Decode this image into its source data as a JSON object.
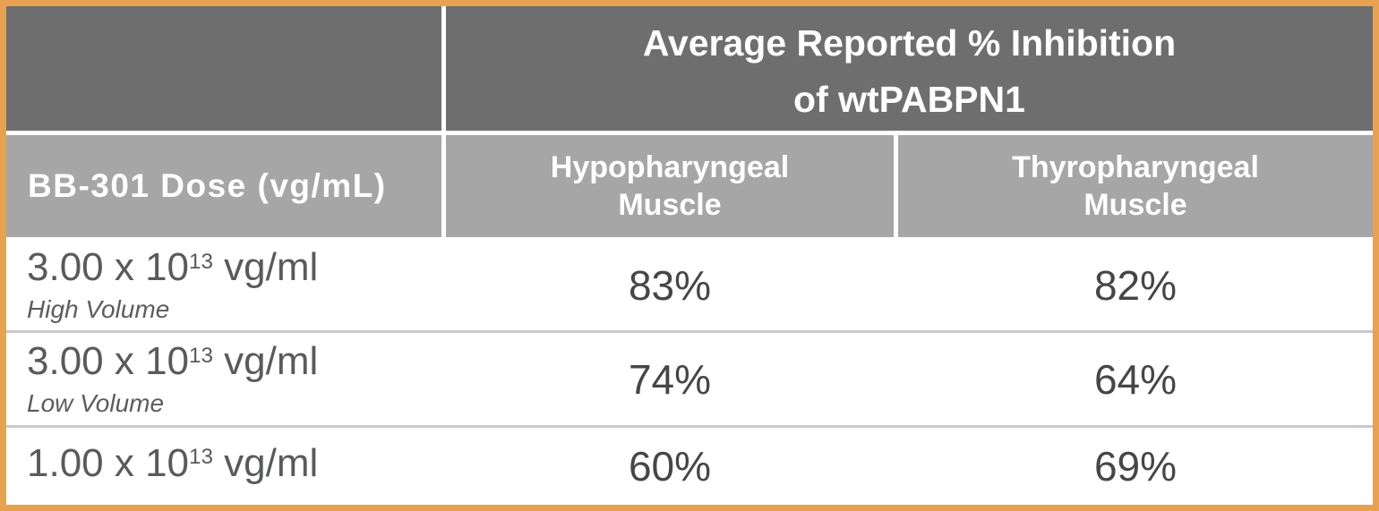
{
  "table": {
    "title_line1": "Average Reported % Inhibition",
    "title_line2": "of wtPABPN1",
    "dose_column_header": "BB-301 Dose (vg/mL)",
    "muscle_headers": [
      "Hypopharyngeal\nMuscle",
      "Thyropharyngeal\nMuscle"
    ],
    "rows": [
      {
        "dose_base": "3.00 x 10",
        "dose_exp": "13",
        "dose_unit": " vg/ml",
        "note": "High Volume",
        "hypo": "83%",
        "thyro": "82%"
      },
      {
        "dose_base": "3.00 x 10",
        "dose_exp": "13",
        "dose_unit": " vg/ml",
        "note": "Low Volume",
        "hypo": "74%",
        "thyro": "64%"
      },
      {
        "dose_base": "1.00 x 10",
        "dose_exp": "13",
        "dose_unit": " vg/ml",
        "note": "",
        "hypo": "60%",
        "thyro": "69%"
      }
    ],
    "colors": {
      "border_orange": "#E8A14F",
      "header_dark_gray": "#6E6E6E",
      "header_mid_gray": "#A6A6A6",
      "row_divider_gray": "#C9C9C9",
      "header_text": "#FFFFFF",
      "body_text": "#595A5C",
      "value_text": "#464648"
    }
  },
  "chart_data": {
    "type": "table",
    "title": "Average Reported % Inhibition of wtPABPN1",
    "columns": [
      "BB-301 Dose (vg/mL)",
      "Hypopharyngeal Muscle",
      "Thyropharyngeal Muscle"
    ],
    "rows": [
      [
        "3.00 x 10^13 vg/ml (High Volume)",
        "83%",
        "82%"
      ],
      [
        "3.00 x 10^13 vg/ml (Low Volume)",
        "74%",
        "64%"
      ],
      [
        "1.00 x 10^13 vg/ml",
        "60%",
        "69%"
      ]
    ],
    "series": [
      {
        "name": "Hypopharyngeal Muscle",
        "values": [
          83,
          74,
          60
        ]
      },
      {
        "name": "Thyropharyngeal Muscle",
        "values": [
          82,
          64,
          69
        ]
      }
    ],
    "categories": [
      "3.00 x 10^13 vg/ml High Volume",
      "3.00 x 10^13 vg/ml Low Volume",
      "1.00 x 10^13 vg/ml"
    ],
    "unit": "% inhibition"
  }
}
